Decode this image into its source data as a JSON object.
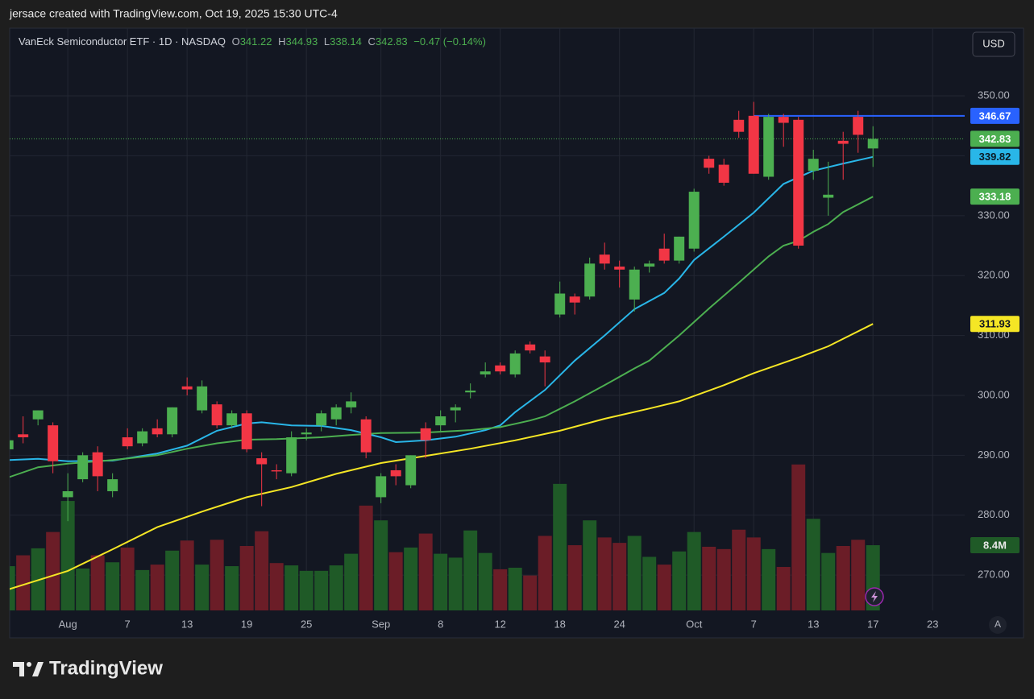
{
  "header": {
    "credit": "jersace created with TradingView.com, Oct 19, 2025 15:30 UTC-4"
  },
  "footer": {
    "brand": "TradingView"
  },
  "currency": "USD",
  "auto_label": "A",
  "chart_data": {
    "type": "candlestick",
    "title": "VanEck Semiconductor ETF · 1D · NASDAQ",
    "ohlc_labels": [
      "O",
      "H",
      "L",
      "C"
    ],
    "change": "−0.47 (−0.14%)",
    "up_color": "#4caf50",
    "down_color": "#f23645",
    "grid": true,
    "ylim": [
      264.1,
      361.3
    ],
    "yticks": [
      {
        "value": 270,
        "label": "270.00"
      },
      {
        "value": 280,
        "label": "280.00"
      },
      {
        "value": 290,
        "label": "290.00"
      },
      {
        "value": 300,
        "label": "300.00"
      },
      {
        "value": 310,
        "label": "310.00"
      },
      {
        "value": 320,
        "label": "320.00"
      },
      {
        "value": 330,
        "label": "330.00"
      },
      {
        "value": 340,
        "label": "340.00"
      },
      {
        "value": 350,
        "label": "350.00"
      }
    ],
    "xlim": [
      0.1,
      64.15
    ],
    "xticks": [
      {
        "value": 4,
        "label": "Aug"
      },
      {
        "value": 8,
        "label": "7"
      },
      {
        "value": 12,
        "label": "13"
      },
      {
        "value": 16,
        "label": "19"
      },
      {
        "value": 20,
        "label": "25"
      },
      {
        "value": 25,
        "label": "Sep"
      },
      {
        "value": 29,
        "label": "8"
      },
      {
        "value": 33,
        "label": "12"
      },
      {
        "value": 37,
        "label": "18"
      },
      {
        "value": 41,
        "label": "24"
      },
      {
        "value": 46,
        "label": "Oct"
      },
      {
        "value": 50,
        "label": "7"
      },
      {
        "value": 54,
        "label": "13"
      },
      {
        "value": 58,
        "label": "17"
      },
      {
        "value": 62,
        "label": "23"
      }
    ],
    "candles": [
      [
        291,
        293,
        290.5,
        292.5
      ],
      [
        293.5,
        296.5,
        292,
        293
      ],
      [
        296,
        297.5,
        295,
        297.5
      ],
      [
        295,
        295.5,
        287,
        289
      ],
      [
        283,
        287,
        279,
        284
      ],
      [
        286,
        290.5,
        285.5,
        290
      ],
      [
        290.5,
        291.5,
        284,
        286.5
      ],
      [
        284,
        287,
        283,
        286
      ],
      [
        293,
        294.5,
        291,
        291.5
      ],
      [
        292,
        294.5,
        291.5,
        294
      ],
      [
        294.5,
        296,
        293,
        293.5
      ],
      [
        293.5,
        298,
        293,
        298
      ],
      [
        301.5,
        303,
        300,
        301
      ],
      [
        297.5,
        302.5,
        297,
        301.5
      ],
      [
        298.5,
        299,
        294.5,
        295
      ],
      [
        295,
        297.5,
        294.5,
        297
      ],
      [
        297,
        297.5,
        290.5,
        291
      ],
      [
        289.5,
        290.5,
        281.5,
        288.5
      ],
      [
        287.5,
        288.5,
        286,
        287.3
      ],
      [
        287,
        294,
        286.5,
        293
      ],
      [
        293.5,
        294.5,
        292.5,
        293.8
      ],
      [
        295,
        297.5,
        294,
        297
      ],
      [
        296,
        298.5,
        295,
        298
      ],
      [
        298,
        300.5,
        297,
        299
      ],
      [
        296,
        296.5,
        289.5,
        290.5
      ],
      [
        283,
        287,
        282,
        286.5
      ],
      [
        287.5,
        288.5,
        285,
        286.5
      ],
      [
        285,
        290,
        284.5,
        290
      ],
      [
        294.5,
        295.5,
        289.5,
        292.5
      ],
      [
        295,
        297.5,
        294,
        296.5
      ],
      [
        297.5,
        298.5,
        295.5,
        298
      ],
      [
        300.5,
        302,
        299.5,
        300.8
      ],
      [
        303.5,
        305.5,
        303,
        304
      ],
      [
        305,
        305.5,
        303.5,
        304
      ],
      [
        303.5,
        307.5,
        303,
        307
      ],
      [
        308.5,
        309,
        307,
        307.5
      ],
      [
        306.5,
        307.5,
        301.5,
        305.5
      ],
      [
        313.5,
        319,
        313,
        317
      ],
      [
        316.5,
        317,
        313.5,
        315.5
      ],
      [
        316.5,
        323,
        316,
        322
      ],
      [
        323.5,
        325.5,
        321,
        322
      ],
      [
        321.5,
        322.5,
        318,
        321
      ],
      [
        316,
        321.5,
        314,
        321
      ],
      [
        321.5,
        322.5,
        320.5,
        322
      ],
      [
        324.5,
        327,
        322,
        322.5
      ],
      [
        322.5,
        326.5,
        322,
        326.5
      ],
      [
        324.5,
        334.5,
        324,
        334
      ],
      [
        339.5,
        340,
        337,
        338
      ],
      [
        338.5,
        339.5,
        335,
        335.5
      ],
      [
        346,
        347.5,
        343,
        344
      ],
      [
        346.67,
        349,
        337,
        337
      ],
      [
        336.5,
        347,
        336,
        346.5
      ],
      [
        346.5,
        347,
        341.5,
        345.5
      ],
      [
        346,
        346.5,
        324.5,
        325
      ],
      [
        337.5,
        341,
        336,
        339.5
      ],
      [
        333,
        339,
        330,
        333.5
      ],
      [
        342.5,
        344,
        336,
        342
      ],
      [
        346.5,
        347.5,
        340.5,
        343.5
      ],
      [
        341.22,
        344.93,
        338.14,
        342.83
      ]
    ],
    "volume": {
      "ylim": [
        0,
        75
      ],
      "up_color": "#1f5a27",
      "down_color": "#6b1d27",
      "label_color": "#1f5a27",
      "last_label": "8.4M",
      "values": [
        5.7,
        7.1,
        8.0,
        10.1,
        14.1,
        5.4,
        7.1,
        6.2,
        8.1,
        5.2,
        5.9,
        7.7,
        9.0,
        5.9,
        9.1,
        5.7,
        8.3,
        10.2,
        6.1,
        5.8,
        5.1,
        5.1,
        5.8,
        7.3,
        13.5,
        11.6,
        7.5,
        8.1,
        9.9,
        7.3,
        6.8,
        10.3,
        7.4,
        5.3,
        5.5,
        4.5,
        9.6,
        16.3,
        8.4,
        11.6,
        9.4,
        8.7,
        9.6,
        6.9,
        5.9,
        7.6,
        10.1,
        8.2,
        7.9,
        10.4,
        9.4,
        7.9,
        5.6,
        18.8,
        11.8,
        7.4,
        8.3,
        9.1,
        8.4
      ]
    },
    "series": [
      {
        "color": "#29b6e8",
        "label_text": "#0b1a24",
        "x": [
          0,
          2,
          4,
          7,
          10,
          12,
          14,
          16,
          17,
          19,
          21,
          23,
          25,
          26,
          28,
          30,
          32,
          33,
          34,
          36,
          38,
          40,
          42,
          44,
          45,
          46,
          48,
          50,
          52,
          54,
          56,
          58
        ],
        "values": [
          289.2,
          289.4,
          289.0,
          289.1,
          290.3,
          291.6,
          294.1,
          295.3,
          295.5,
          295.0,
          294.9,
          294.2,
          293.0,
          292.2,
          292.5,
          293.1,
          294.2,
          295.0,
          297.2,
          300.9,
          305.8,
          310.0,
          314.4,
          317.1,
          319.5,
          322.6,
          326.5,
          330.5,
          335.3,
          337.5,
          338.7,
          339.82
        ]
      },
      {
        "color": "#4caf50",
        "label_text": "#ffffff",
        "x": [
          0,
          2,
          4,
          7,
          10,
          12,
          14,
          16,
          18,
          21,
          23,
          25,
          28,
          31,
          33,
          35,
          36,
          38,
          40,
          42,
          43,
          45,
          47,
          49,
          51,
          52,
          53,
          54,
          55,
          56,
          58
        ],
        "values": [
          286.3,
          288.0,
          288.6,
          289.2,
          290.0,
          291.1,
          292.0,
          292.6,
          292.7,
          293.0,
          293.4,
          293.7,
          293.8,
          294.2,
          294.7,
          295.8,
          296.5,
          299.0,
          301.7,
          304.5,
          305.8,
          310.0,
          314.5,
          318.8,
          323.2,
          325.0,
          325.8,
          327.3,
          328.6,
          330.6,
          333.18
        ]
      },
      {
        "color": "#f5e625",
        "label_text": "#131722",
        "x": [
          0,
          4,
          7,
          10,
          13,
          16,
          19,
          22,
          25,
          28,
          31,
          34,
          37,
          40,
          43,
          45,
          48,
          50,
          53,
          55,
          58
        ],
        "values": [
          267.6,
          270.7,
          274.3,
          278.0,
          280.6,
          283.0,
          284.7,
          286.9,
          288.7,
          289.9,
          291.1,
          292.5,
          294.1,
          296.1,
          297.8,
          299.0,
          301.7,
          303.7,
          306.3,
          308.2,
          311.93
        ]
      }
    ],
    "hline": {
      "value": 346.67,
      "start": 50,
      "color": "#2962ff"
    }
  }
}
